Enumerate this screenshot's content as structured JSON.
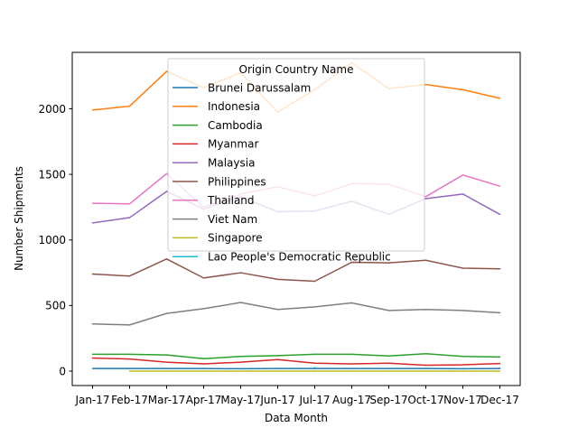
{
  "chart_data": {
    "type": "line",
    "xlabel": "Data Month",
    "ylabel": "Number Shipments",
    "categories": [
      "Jan-17",
      "Feb-17",
      "Mar-17",
      "Apr-17",
      "May-17",
      "Jun-17",
      "Jul-17",
      "Aug-17",
      "Sep-17",
      "Oct-17",
      "Nov-17",
      "Dec-17"
    ],
    "ylim": [
      -110,
      2430
    ],
    "yticks": [
      0,
      500,
      1000,
      1500,
      2000
    ],
    "grid": false,
    "legend": {
      "title": "Origin Country Name",
      "placement": "upper-center"
    },
    "series": [
      {
        "name": "Brunei Darussalam",
        "color": "#1f77b4",
        "values": [
          20,
          20,
          20,
          20,
          18,
          20,
          20,
          20,
          20,
          20,
          18,
          20
        ]
      },
      {
        "name": "Indonesia",
        "color": "#ff7f0e",
        "values": [
          1990,
          2020,
          2285,
          2160,
          2275,
          1975,
          2145,
          2350,
          2155,
          2185,
          2145,
          2080
        ]
      },
      {
        "name": "Cambodia",
        "color": "#2ca02c",
        "values": [
          128,
          128,
          123,
          95,
          112,
          118,
          128,
          128,
          115,
          133,
          112,
          108
        ]
      },
      {
        "name": "Myanmar",
        "color": "#d62728",
        "values": [
          100,
          92,
          68,
          55,
          68,
          88,
          60,
          55,
          60,
          45,
          48,
          58
        ]
      },
      {
        "name": "Malaysia",
        "color": "#9467bd",
        "values": [
          1130,
          1170,
          1370,
          1235,
          1330,
          1215,
          1220,
          1295,
          1195,
          1315,
          1350,
          1195
        ]
      },
      {
        "name": "Philippines",
        "color": "#8c564b",
        "values": [
          740,
          725,
          855,
          710,
          750,
          700,
          685,
          830,
          825,
          845,
          785,
          780
        ]
      },
      {
        "name": "Thailand",
        "color": "#e377c2",
        "values": [
          1280,
          1275,
          1505,
          1250,
          1350,
          1405,
          1335,
          1430,
          1425,
          1330,
          1495,
          1410
        ]
      },
      {
        "name": "Viet Nam",
        "color": "#7f7f7f",
        "values": [
          360,
          352,
          440,
          476,
          523,
          470,
          490,
          520,
          462,
          470,
          462,
          445
        ]
      },
      {
        "name": "Singapore",
        "color": "#bcbd22",
        "values": [
          null,
          0,
          0,
          0,
          0,
          0,
          0,
          0,
          0,
          0,
          0,
          0
        ]
      },
      {
        "name": "Lao People's Democratic Republic",
        "color": "#17becf",
        "values": [
          null,
          null,
          null,
          null,
          null,
          null,
          28,
          null,
          null,
          null,
          null,
          25
        ]
      }
    ]
  }
}
